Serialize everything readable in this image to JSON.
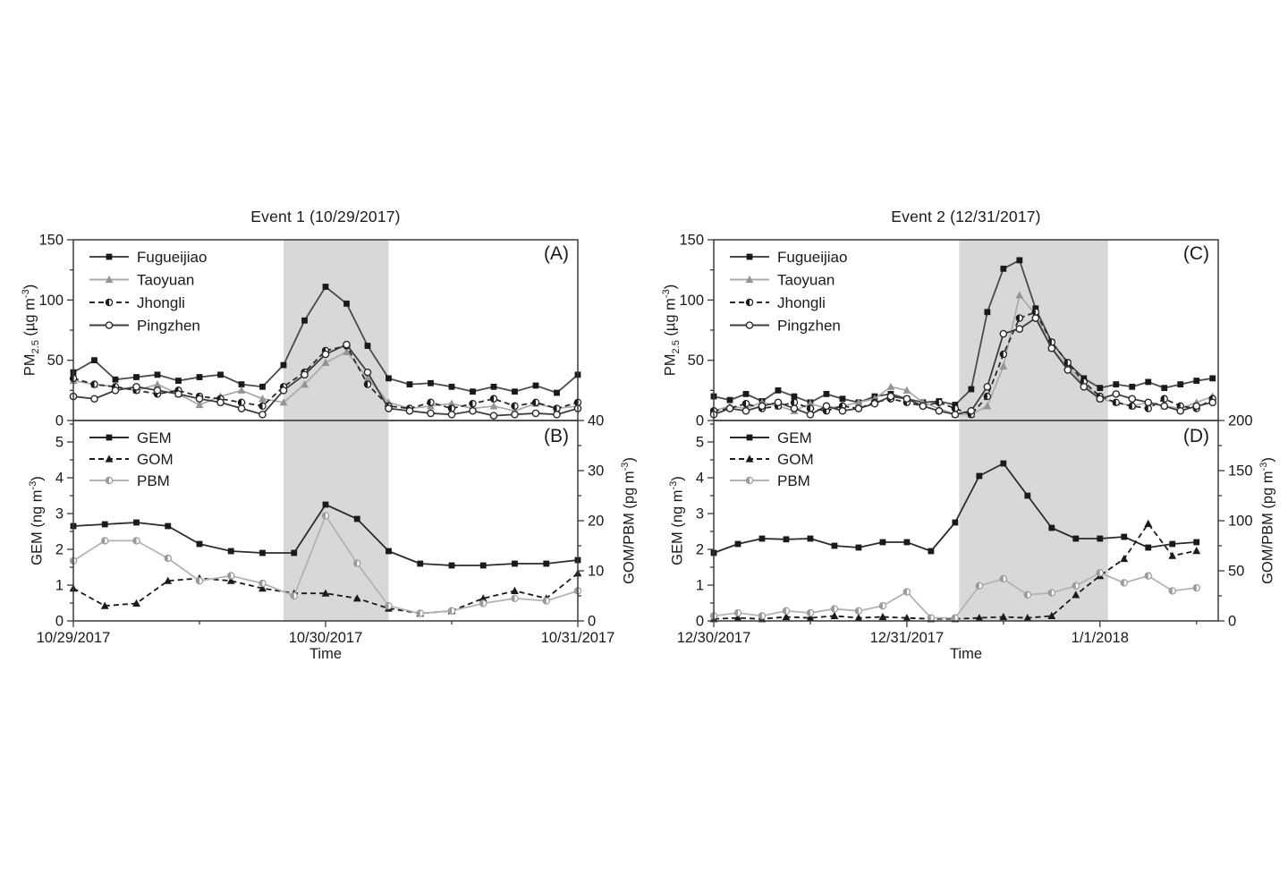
{
  "figure": {
    "kind": "two-event multi-panel time series figure",
    "background": "#ffffff",
    "text_color": "#1a1a1a",
    "shading_color": "#d8d8d8",
    "box_color": "#3a3a3a"
  },
  "chart_data": [
    {
      "type": "line",
      "panel_label": "(A)",
      "title": "Event 1 (10/29/2017)",
      "ylabel_parts": [
        [
          "t",
          "PM"
        ],
        [
          "sub",
          "2.5"
        ],
        [
          "t",
          " (µg m"
        ],
        [
          "sup",
          "-3"
        ],
        [
          "t",
          ")"
        ]
      ],
      "ylim": [
        0,
        150
      ],
      "yticks": [
        0,
        50,
        100,
        150
      ],
      "y_minor_ticks": [
        25,
        75,
        125
      ],
      "x_range_hours": [
        0,
        48
      ],
      "x_start_hour": 0,
      "x_step_hours": 2,
      "x_axis_ticks": [],
      "x_minor_tick_hours": [],
      "shaded_region_hours": [
        20,
        30
      ],
      "legend_position": "top-left",
      "series": [
        {
          "name": "Fugueijiao",
          "axis": "left",
          "marker": "square",
          "marker_color": "#1a1a1a",
          "line_color": "#4a4a4a",
          "line_style": "solid",
          "values": [
            40,
            50,
            34,
            36,
            38,
            33,
            36,
            38,
            30,
            28,
            46,
            83,
            111,
            97,
            62,
            35,
            30,
            31,
            28,
            24,
            28,
            24,
            29,
            23,
            38
          ]
        },
        {
          "name": "Taoyuan",
          "axis": "left",
          "marker": "triangle",
          "marker_color": "#949494",
          "line_color": "#ababab",
          "line_style": "solid",
          "values": [
            33,
            30,
            28,
            25,
            30,
            22,
            13,
            20,
            25,
            18,
            15,
            30,
            48,
            57,
            35,
            15,
            10,
            12,
            14,
            10,
            12,
            8,
            14,
            10,
            12
          ]
        },
        {
          "name": "Jhongli",
          "axis": "left",
          "marker": "circle-half",
          "marker_color": "#1a1a1a",
          "line_color": "#2b2b2b",
          "line_style": "dashed",
          "values": [
            35,
            30,
            28,
            25,
            22,
            25,
            20,
            18,
            15,
            12,
            28,
            40,
            58,
            62,
            30,
            12,
            10,
            15,
            10,
            14,
            18,
            12,
            15,
            10,
            15
          ]
        },
        {
          "name": "Pingzhen",
          "axis": "left",
          "marker": "circle-open",
          "marker_color": "#2b2b2b",
          "line_color": "#3d3d3d",
          "line_style": "solid",
          "values": [
            20,
            18,
            25,
            28,
            25,
            22,
            18,
            15,
            10,
            5,
            25,
            38,
            55,
            63,
            40,
            10,
            8,
            6,
            5,
            8,
            4,
            5,
            6,
            5,
            10
          ]
        }
      ]
    },
    {
      "type": "line",
      "panel_label": "(B)",
      "title": "",
      "xlabel": "Time",
      "ylabel_parts": [
        [
          "t",
          "GEM (ng m"
        ],
        [
          "sup",
          "-3"
        ],
        [
          "t",
          ")"
        ]
      ],
      "right_ylabel_parts": [
        [
          "t",
          "GOM/PBM (pg m"
        ],
        [
          "sup",
          "-3"
        ],
        [
          "t",
          ")"
        ]
      ],
      "ylim": [
        0,
        5.6
      ],
      "yticks": [
        0,
        1,
        2,
        3,
        4,
        5
      ],
      "y_minor_ticks": [
        0.5,
        1.5,
        2.5,
        3.5,
        4.5,
        5.5
      ],
      "right_ylim": [
        0,
        40
      ],
      "right_yticks": [
        0,
        10,
        20,
        30,
        40
      ],
      "right_y_minor_ticks": [
        5,
        15,
        25,
        35
      ],
      "x_range_hours": [
        0,
        48
      ],
      "x_start_hour": 0,
      "x_step_hours": 3,
      "x_axis_ticks": [
        {
          "hour": 0,
          "label": "10/29/2017"
        },
        {
          "hour": 24,
          "label": "10/30/2017"
        },
        {
          "hour": 48,
          "label": "10/31/2017"
        }
      ],
      "x_minor_tick_hours": [
        12,
        36
      ],
      "shaded_region_hours": [
        20,
        30
      ],
      "legend_position": "top-left",
      "series": [
        {
          "name": "GEM",
          "axis": "left",
          "marker": "square",
          "marker_color": "#1a1a1a",
          "line_color": "#2b2b2b",
          "line_style": "solid",
          "values": [
            2.65,
            2.7,
            2.75,
            2.65,
            2.15,
            1.95,
            1.9,
            1.9,
            3.25,
            2.85,
            1.95,
            1.6,
            1.55,
            1.55,
            1.6,
            1.6,
            1.7
          ]
        },
        {
          "name": "GOM",
          "axis": "right",
          "marker": "triangle",
          "marker_color": "#1a1a1a",
          "line_color": "#1a1a1a",
          "line_style": "dashed",
          "values": [
            6.5,
            3,
            3.5,
            8,
            8.5,
            8,
            6.5,
            5.5,
            5.5,
            4.5,
            2.5,
            1.5,
            2,
            4.5,
            6,
            4.5,
            9.5
          ]
        },
        {
          "name": "PBM",
          "axis": "right",
          "marker": "circle-half",
          "marker_color": "#9a9a9a",
          "line_color": "#b3b3b3",
          "line_style": "solid",
          "values": [
            12,
            16,
            16,
            12.5,
            8,
            9,
            7.5,
            5,
            21,
            11.5,
            3,
            1.5,
            2,
            3.5,
            4.5,
            4,
            6
          ]
        }
      ]
    },
    {
      "type": "line",
      "panel_label": "(C)",
      "title": "Event 2 (12/31/2017)",
      "ylabel_parts": [
        [
          "t",
          "PM"
        ],
        [
          "sub",
          "2.5"
        ],
        [
          "t",
          " (µg m"
        ],
        [
          "sup",
          "-3"
        ],
        [
          "t",
          ")"
        ]
      ],
      "ylim": [
        0,
        150
      ],
      "yticks": [
        0,
        50,
        100,
        150
      ],
      "y_minor_ticks": [
        25,
        75,
        125
      ],
      "x_range_hours": [
        0,
        62.7
      ],
      "x_start_hour": 0,
      "x_step_hours": 2,
      "x_axis_ticks": [],
      "x_minor_tick_hours": [],
      "shaded_region_hours": [
        30.5,
        49
      ],
      "legend_position": "top-left",
      "series": [
        {
          "name": "Fugueijiao",
          "axis": "left",
          "marker": "square",
          "marker_color": "#1a1a1a",
          "line_color": "#4a4a4a",
          "line_style": "solid",
          "values": [
            20,
            17,
            22,
            16,
            25,
            20,
            15,
            22,
            18,
            15,
            20,
            22,
            18,
            15,
            16,
            13,
            26,
            90,
            126,
            133,
            93,
            65,
            48,
            35,
            27,
            30,
            28,
            32,
            27,
            30,
            33,
            35
          ]
        },
        {
          "name": "Taoyuan",
          "axis": "left",
          "marker": "triangle",
          "marker_color": "#949494",
          "line_color": "#ababab",
          "line_style": "solid",
          "values": [
            8,
            12,
            10,
            15,
            12,
            8,
            14,
            10,
            12,
            15,
            18,
            28,
            25,
            15,
            10,
            5,
            5,
            12,
            45,
            104,
            88,
            60,
            45,
            30,
            18,
            15,
            12,
            15,
            12,
            10,
            15,
            20
          ]
        },
        {
          "name": "Jhongli",
          "axis": "left",
          "marker": "circle-half",
          "marker_color": "#1a1a1a",
          "line_color": "#2b2b2b",
          "line_style": "dashed",
          "values": [
            8,
            10,
            14,
            10,
            12,
            15,
            10,
            8,
            12,
            10,
            15,
            18,
            15,
            12,
            15,
            10,
            5,
            20,
            55,
            85,
            90,
            65,
            48,
            32,
            20,
            15,
            12,
            10,
            18,
            12,
            10,
            18
          ]
        },
        {
          "name": "Pingzhen",
          "axis": "left",
          "marker": "circle-open",
          "marker_color": "#2b2b2b",
          "line_color": "#3d3d3d",
          "line_style": "solid",
          "values": [
            5,
            10,
            8,
            12,
            15,
            10,
            5,
            12,
            8,
            10,
            14,
            20,
            18,
            12,
            8,
            5,
            8,
            28,
            72,
            76,
            85,
            60,
            42,
            28,
            18,
            22,
            18,
            15,
            12,
            8,
            12,
            15
          ]
        }
      ]
    },
    {
      "type": "line",
      "panel_label": "(D)",
      "title": "",
      "xlabel": "Time",
      "ylabel_parts": [
        [
          "t",
          "GEM (ng m"
        ],
        [
          "sup",
          "-3"
        ],
        [
          "t",
          ")"
        ]
      ],
      "right_ylabel_parts": [
        [
          "t",
          "GOM/PBM (pg m"
        ],
        [
          "sup",
          "-3"
        ],
        [
          "t",
          ")"
        ]
      ],
      "ylim": [
        0,
        5.6
      ],
      "yticks": [
        0,
        1,
        2,
        3,
        4,
        5
      ],
      "y_minor_ticks": [
        0.5,
        1.5,
        2.5,
        3.5,
        4.5,
        5.5
      ],
      "right_ylim": [
        0,
        200
      ],
      "right_yticks": [
        0,
        50,
        100,
        150,
        200
      ],
      "right_y_minor_ticks": [
        25,
        75,
        125,
        175
      ],
      "x_range_hours": [
        0,
        62.7
      ],
      "x_start_hour": 0,
      "x_step_hours": 3,
      "x_axis_ticks": [
        {
          "hour": 0,
          "label": "12/30/2017"
        },
        {
          "hour": 24,
          "label": "12/31/2017"
        },
        {
          "hour": 48,
          "label": "1/1/2018"
        }
      ],
      "x_minor_tick_hours": [
        12,
        36,
        60
      ],
      "shaded_region_hours": [
        30.5,
        49
      ],
      "legend_position": "top-left",
      "series": [
        {
          "name": "GEM",
          "axis": "left",
          "marker": "square",
          "marker_color": "#1a1a1a",
          "line_color": "#2b2b2b",
          "line_style": "solid",
          "values": [
            1.9,
            2.15,
            2.3,
            2.28,
            2.3,
            2.1,
            2.05,
            2.2,
            2.2,
            1.95,
            2.75,
            4.05,
            4.4,
            3.5,
            2.6,
            2.3,
            2.3,
            2.35,
            2.05,
            2.15,
            2.2
          ]
        },
        {
          "name": "GOM",
          "axis": "right",
          "marker": "triangle",
          "marker_color": "#1a1a1a",
          "line_color": "#1a1a1a",
          "line_style": "dashed",
          "values": [
            2,
            3,
            2,
            4,
            3,
            5,
            3,
            4,
            3,
            2,
            2,
            3,
            4,
            3,
            5,
            26,
            45,
            62,
            97,
            65,
            70
          ]
        },
        {
          "name": "PBM",
          "axis": "right",
          "marker": "circle-half",
          "marker_color": "#9a9a9a",
          "line_color": "#b3b3b3",
          "line_style": "solid",
          "values": [
            5,
            8,
            5,
            10,
            8,
            12,
            10,
            15,
            29,
            3,
            3,
            35,
            42,
            26,
            28,
            35,
            48,
            38,
            45,
            30,
            33
          ]
        }
      ]
    }
  ]
}
